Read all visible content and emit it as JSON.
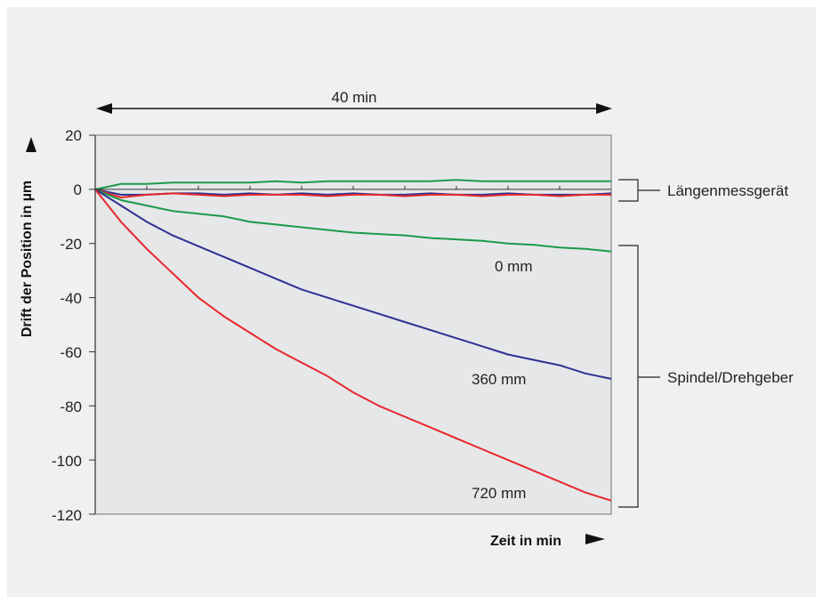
{
  "colors": {
    "background": "#eff0f2",
    "plot_area": "#e6e7e9",
    "green": "#1a9a4a",
    "blue": "#2e3192",
    "red": "#e8262a"
  },
  "chart_data": {
    "type": "line",
    "xlabel": "Zeit in min",
    "ylabel": "Drift der Position in µm",
    "span_label": "40 min",
    "ylim": [
      -120,
      20
    ],
    "xlim": [
      0,
      40
    ],
    "yticks": [
      "20",
      "0",
      "-20",
      "-40",
      "-60",
      "-80",
      "-100",
      "-120"
    ],
    "grid": false,
    "annotations": {
      "top_group": "Längenmessgerät",
      "bottom_group": "Spindel/Drehgeber",
      "label_0": "0 mm",
      "label_360": "360 mm",
      "label_720": "720 mm"
    },
    "series": [
      {
        "color": "green",
        "group": "Längenmessgerät",
        "x": [
          0,
          2,
          4,
          6,
          8,
          10,
          12,
          14,
          16,
          18,
          20,
          22,
          24,
          26,
          28,
          30,
          32,
          34,
          36,
          38,
          40
        ],
        "values": [
          0,
          2,
          2,
          2.5,
          2.5,
          2.5,
          2.5,
          3,
          2.5,
          3,
          3,
          3,
          3,
          3,
          3.5,
          3,
          3,
          3,
          3,
          3,
          3
        ]
      },
      {
        "color": "blue",
        "group": "Längenmessgerät",
        "x": [
          0,
          2,
          4,
          6,
          8,
          10,
          12,
          14,
          16,
          18,
          20,
          22,
          24,
          26,
          28,
          30,
          32,
          34,
          36,
          38,
          40
        ],
        "values": [
          0,
          -2,
          -2,
          -1.5,
          -1.5,
          -2,
          -1.5,
          -2,
          -1.5,
          -2,
          -1.5,
          -2,
          -2,
          -1.5,
          -2,
          -2,
          -1.5,
          -2,
          -2,
          -2,
          -1.5
        ]
      },
      {
        "color": "red",
        "group": "Längenmessgerät",
        "x": [
          0,
          2,
          4,
          6,
          8,
          10,
          12,
          14,
          16,
          18,
          20,
          22,
          24,
          26,
          28,
          30,
          32,
          34,
          36,
          38,
          40
        ],
        "values": [
          0,
          -3,
          -2,
          -1.5,
          -2,
          -2.5,
          -2,
          -2,
          -2,
          -2.5,
          -2,
          -2,
          -2.5,
          -2,
          -2,
          -2.5,
          -2,
          -2,
          -2.5,
          -2,
          -2
        ]
      },
      {
        "name": "0 mm",
        "color": "green",
        "group": "Spindel/Drehgeber",
        "x": [
          0,
          2,
          4,
          6,
          8,
          10,
          12,
          14,
          16,
          18,
          20,
          22,
          24,
          26,
          28,
          30,
          32,
          34,
          36,
          38,
          40
        ],
        "values": [
          0,
          -4,
          -6,
          -8,
          -9,
          -10,
          -12,
          -13,
          -14,
          -15,
          -16,
          -16.5,
          -17,
          -18,
          -18.5,
          -19,
          -20,
          -20.5,
          -21.5,
          -22,
          -23
        ]
      },
      {
        "name": "360 mm",
        "color": "blue",
        "group": "Spindel/Drehgeber",
        "x": [
          0,
          2,
          4,
          6,
          8,
          10,
          12,
          14,
          16,
          18,
          20,
          22,
          24,
          26,
          28,
          30,
          32,
          34,
          36,
          38,
          40
        ],
        "values": [
          0,
          -6,
          -12,
          -17,
          -21,
          -25,
          -29,
          -33,
          -37,
          -40,
          -43,
          -46,
          -49,
          -52,
          -55,
          -58,
          -61,
          -63,
          -65,
          -68,
          -70
        ]
      },
      {
        "name": "720 mm",
        "color": "red",
        "group": "Spindel/Drehgeber",
        "x": [
          0,
          2,
          4,
          6,
          8,
          10,
          12,
          14,
          16,
          18,
          20,
          22,
          24,
          26,
          28,
          30,
          32,
          34,
          36,
          38,
          40
        ],
        "values": [
          0,
          -12,
          -22,
          -31,
          -40,
          -47,
          -53,
          -59,
          -64,
          -69,
          -75,
          -80,
          -84,
          -88,
          -92,
          -96,
          -100,
          -104,
          -108,
          -112,
          -115
        ]
      }
    ]
  }
}
